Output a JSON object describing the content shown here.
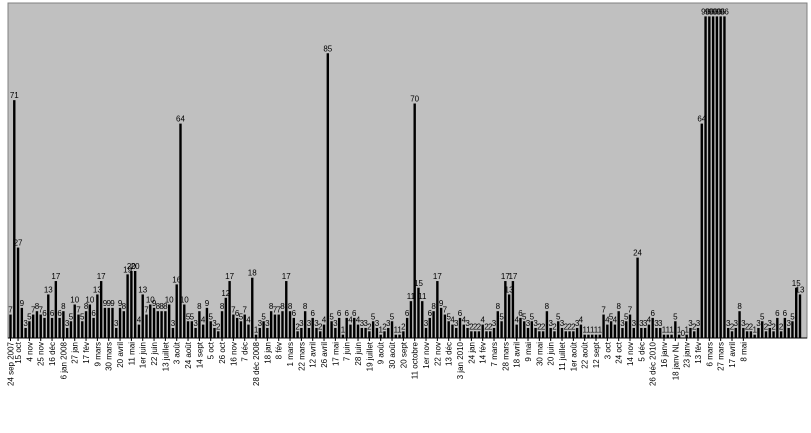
{
  "chart_data": {
    "type": "bar",
    "title": "",
    "xlabel": "",
    "ylabel": "",
    "ylim": [
      0,
      100
    ],
    "grid": false,
    "legend": "none",
    "colors": {
      "plot_background": "#c0c0c0",
      "bar": "#000000",
      "page": "#ffffff"
    },
    "values": [
      7,
      71,
      27,
      9,
      3,
      5,
      7,
      8,
      7,
      6,
      13,
      6,
      17,
      6,
      8,
      3,
      5,
      10,
      7,
      5,
      8,
      10,
      6,
      13,
      17,
      9,
      9,
      9,
      3,
      9,
      8,
      19,
      20,
      20,
      4,
      13,
      7,
      10,
      9,
      8,
      8,
      8,
      10,
      3,
      16,
      64,
      10,
      5,
      5,
      3,
      8,
      4,
      9,
      5,
      3,
      2,
      8,
      12,
      17,
      7,
      6,
      5,
      7,
      4,
      18,
      1,
      3,
      5,
      3,
      8,
      7,
      7,
      8,
      17,
      8,
      6,
      2,
      3,
      8,
      3,
      6,
      3,
      2,
      4,
      85,
      5,
      3,
      6,
      1,
      6,
      4,
      6,
      4,
      3,
      3,
      2,
      5,
      3,
      1,
      2,
      3,
      5,
      1,
      1,
      2,
      6,
      11,
      70,
      15,
      11,
      3,
      6,
      8,
      17,
      9,
      7,
      5,
      4,
      3,
      6,
      4,
      3,
      2,
      2,
      2,
      4,
      2,
      2,
      3,
      8,
      5,
      17,
      13,
      17,
      4,
      6,
      5,
      3,
      5,
      3,
      2,
      2,
      8,
      3,
      2,
      5,
      3,
      2,
      2,
      2,
      3,
      4,
      1,
      1,
      1,
      1,
      1,
      7,
      4,
      5,
      4,
      8,
      3,
      5,
      7,
      3,
      24,
      3,
      3,
      4,
      6,
      3,
      3,
      1,
      1,
      1,
      5,
      1,
      0,
      1,
      3,
      2,
      3,
      64,
      96,
      96,
      96,
      96,
      96,
      96,
      3,
      2,
      3,
      8,
      3,
      2,
      2,
      1,
      3,
      5,
      2,
      3,
      2,
      6,
      2,
      6,
      3,
      5,
      15,
      13
    ],
    "data_labels": [
      "7",
      "71",
      "27",
      "9",
      "3",
      "5",
      "7",
      "8",
      "7",
      "6",
      "13",
      "6",
      "17",
      "6",
      "8",
      "3",
      "5",
      "10",
      "7",
      "5",
      "8",
      "10",
      "6",
      "13",
      "17",
      "9",
      "9",
      "9",
      "3",
      "9",
      "8",
      "19",
      "20",
      "20",
      "4",
      "13",
      "7",
      "10",
      "9",
      "8",
      "8",
      "8",
      "10",
      "3",
      "16",
      "64",
      "10",
      "5",
      "5",
      "3",
      "8",
      "4",
      "9",
      "5",
      "3",
      "2",
      "8",
      "12",
      "17",
      "7",
      "6",
      "5",
      "7",
      "4",
      "18",
      "1",
      "3",
      "5",
      "3",
      "8",
      "7",
      "7",
      "8",
      "17",
      "8",
      "6",
      "2",
      "3",
      "8",
      "3",
      "6",
      "3",
      "2",
      "4",
      "85",
      "5",
      "3",
      "6",
      "1",
      "6",
      "4",
      "6",
      "4",
      "3",
      "3",
      "2",
      "5",
      "3",
      "1",
      "2",
      "3",
      "5",
      "1",
      "1",
      "2",
      "6",
      "11",
      "70",
      "15",
      "11",
      "3",
      "6",
      "8",
      "17",
      "9",
      "7",
      "5",
      "4",
      "3",
      "6",
      "4",
      "3",
      "2",
      "2",
      "2",
      "4",
      "2",
      "2",
      "3",
      "8",
      "5",
      "17",
      "13",
      "17",
      "4",
      "6",
      "5",
      "3",
      "5",
      "3",
      "2",
      "2",
      "8",
      "3",
      "2",
      "5",
      "3",
      "2",
      "2",
      "2",
      "3",
      "4",
      "1",
      "1",
      "1",
      "1",
      "1",
      "7",
      "4",
      "5",
      "4",
      "8",
      "3",
      "5",
      "7",
      "3",
      "24",
      "3",
      "3",
      "4",
      "6",
      "3",
      "3",
      "1",
      "1",
      "1",
      "5",
      "1",
      "0",
      "1",
      "3",
      "2",
      "3",
      "64",
      "96",
      "96",
      "96",
      "96",
      "96",
      "96",
      "3",
      "2",
      "3",
      "8",
      "3",
      "2",
      "2",
      "1",
      "3",
      "5",
      "2",
      "3",
      "2",
      "6",
      "2",
      "6",
      "3",
      "5",
      "15",
      "13"
    ],
    "category_ticks": [
      {
        "index": 0,
        "label": "24 sep 2007"
      },
      {
        "index": 2,
        "label": "15 oct"
      },
      {
        "index": 5,
        "label": "4 nov"
      },
      {
        "index": 8,
        "label": "25 nov"
      },
      {
        "index": 11,
        "label": "16 déc"
      },
      {
        "index": 14,
        "label": "6 jan 2008"
      },
      {
        "index": 17,
        "label": "27 jan"
      },
      {
        "index": 20,
        "label": "17 fév"
      },
      {
        "index": 23,
        "label": "9 mars"
      },
      {
        "index": 26,
        "label": "30 mars"
      },
      {
        "index": 29,
        "label": "20 avril"
      },
      {
        "index": 32,
        "label": "11 mai"
      },
      {
        "index": 35,
        "label": "1er juin"
      },
      {
        "index": 38,
        "label": "22 juin"
      },
      {
        "index": 41,
        "label": "13 juillet"
      },
      {
        "index": 44,
        "label": "3 août"
      },
      {
        "index": 47,
        "label": "24 août"
      },
      {
        "index": 50,
        "label": "14 sept"
      },
      {
        "index": 53,
        "label": "5 oct"
      },
      {
        "index": 56,
        "label": "26 oct"
      },
      {
        "index": 59,
        "label": "16 nov"
      },
      {
        "index": 62,
        "label": "7 déc"
      },
      {
        "index": 65,
        "label": "28 déc 2008"
      },
      {
        "index": 68,
        "label": "18 jan"
      },
      {
        "index": 71,
        "label": "8 fév"
      },
      {
        "index": 74,
        "label": "1 mars"
      },
      {
        "index": 77,
        "label": "22 mars"
      },
      {
        "index": 80,
        "label": "12 avril"
      },
      {
        "index": 83,
        "label": "26 avril"
      },
      {
        "index": 86,
        "label": "17 mai"
      },
      {
        "index": 89,
        "label": "7 juin"
      },
      {
        "index": 92,
        "label": "28 juin"
      },
      {
        "index": 95,
        "label": "19 juillet"
      },
      {
        "index": 98,
        "label": "9 août"
      },
      {
        "index": 101,
        "label": "30 août"
      },
      {
        "index": 104,
        "label": "20 sept"
      },
      {
        "index": 107,
        "label": "11 octobre"
      },
      {
        "index": 110,
        "label": "1er nov"
      },
      {
        "index": 113,
        "label": "22 nov"
      },
      {
        "index": 116,
        "label": "13 déc"
      },
      {
        "index": 119,
        "label": "3 jan 2010"
      },
      {
        "index": 122,
        "label": "24 jan"
      },
      {
        "index": 125,
        "label": "14 fév"
      },
      {
        "index": 128,
        "label": "7 mars"
      },
      {
        "index": 131,
        "label": "28 mars"
      },
      {
        "index": 134,
        "label": "18 avril"
      },
      {
        "index": 137,
        "label": "9 mai"
      },
      {
        "index": 140,
        "label": "30 mai"
      },
      {
        "index": 143,
        "label": "20 juin"
      },
      {
        "index": 146,
        "label": "11 juillet"
      },
      {
        "index": 149,
        "label": "1er août"
      },
      {
        "index": 152,
        "label": "22 août"
      },
      {
        "index": 155,
        "label": "12 sept"
      },
      {
        "index": 158,
        "label": "3 oct"
      },
      {
        "index": 161,
        "label": "24 oct"
      },
      {
        "index": 164,
        "label": "14 nov"
      },
      {
        "index": 167,
        "label": "5 déc"
      },
      {
        "index": 170,
        "label": "26 déc 2010"
      },
      {
        "index": 173,
        "label": "16 janv"
      },
      {
        "index": 176,
        "label": "18 janv NL"
      },
      {
        "index": 179,
        "label": "23 janv"
      },
      {
        "index": 182,
        "label": "13 fév"
      },
      {
        "index": 185,
        "label": "6 mars"
      },
      {
        "index": 188,
        "label": "27 mars"
      },
      {
        "index": 191,
        "label": "17 avril"
      },
      {
        "index": 194,
        "label": "8 mai"
      }
    ]
  }
}
